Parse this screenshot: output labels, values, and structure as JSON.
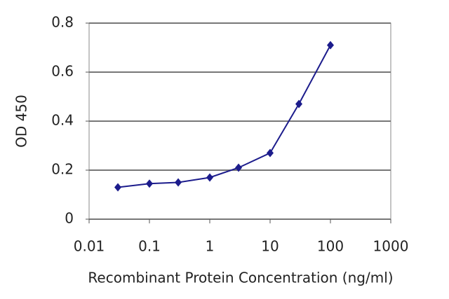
{
  "chart_data": {
    "type": "line",
    "xlabel": "Recombinant Protein Concentration (ng/ml)",
    "ylabel": "OD 450",
    "x": [
      0.03,
      0.1,
      0.3,
      1,
      3,
      10,
      30,
      100
    ],
    "values": [
      0.13,
      0.145,
      0.15,
      0.17,
      0.21,
      0.27,
      0.47,
      0.71
    ],
    "color": "#1c1c8c",
    "xscale": "log",
    "grid": true,
    "xlim": [
      0.01,
      1000
    ],
    "xticks": [
      0.01,
      0.1,
      1,
      10,
      100,
      1000
    ],
    "ylim": [
      0,
      0.8
    ],
    "yticks": [
      0,
      0.2,
      0.4,
      0.6,
      0.8
    ]
  }
}
